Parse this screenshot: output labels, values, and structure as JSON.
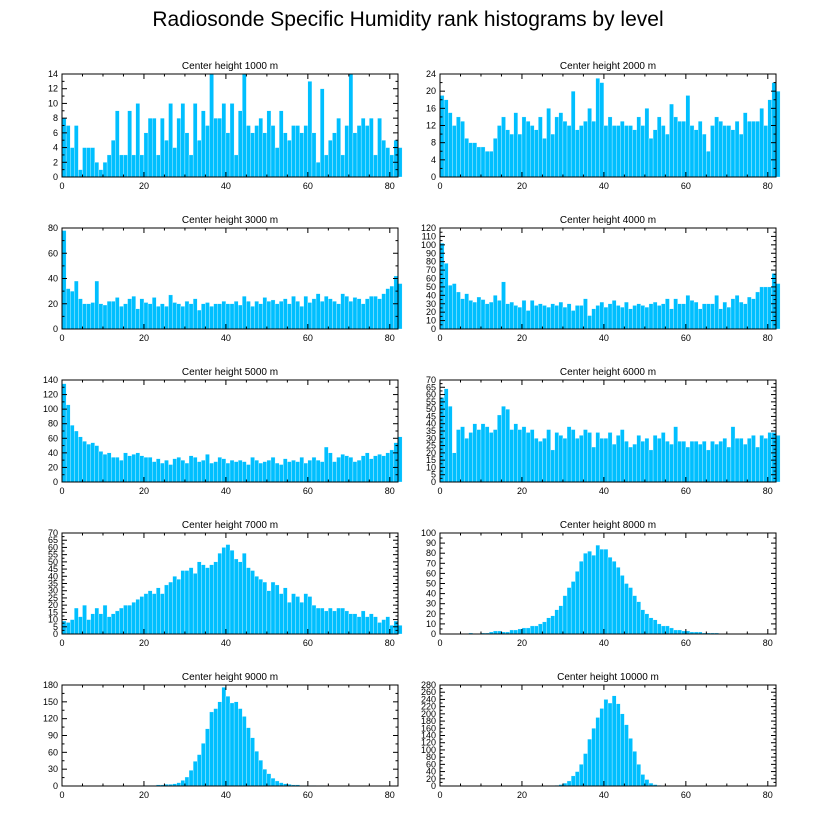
{
  "title": "Radiosonde Specific Humidity rank histograms by level",
  "bar_color": "#00bfff",
  "chart_data": [
    {
      "type": "bar",
      "title": "Center height 1000 m",
      "xlabel": "",
      "ylabel": "",
      "xlim": [
        0,
        82
      ],
      "xticks": [
        0,
        20,
        40,
        60,
        80
      ],
      "ylim": [
        0,
        14
      ],
      "yticks": [
        0,
        2,
        4,
        6,
        8,
        10,
        12,
        14
      ],
      "values": [
        8,
        7,
        4,
        7,
        1,
        4,
        4,
        4,
        2,
        1,
        2,
        3,
        5,
        9,
        3,
        3,
        9,
        3,
        10,
        3,
        6,
        8,
        8,
        3,
        8,
        5,
        10,
        4,
        8,
        10,
        6,
        3,
        10,
        5,
        9,
        7,
        14,
        8,
        8,
        10,
        6,
        10,
        3,
        9,
        14,
        7,
        6,
        7,
        8,
        6,
        9,
        7,
        4,
        9,
        6,
        5,
        7,
        7,
        6,
        7,
        13,
        6,
        2,
        12,
        3,
        5,
        6,
        8,
        3,
        7,
        14,
        6,
        7,
        8,
        7,
        8,
        3,
        8,
        5,
        4,
        3,
        5,
        4
      ]
    },
    {
      "type": "bar",
      "title": "Center height 2000 m",
      "xlabel": "",
      "ylabel": "",
      "xlim": [
        0,
        82
      ],
      "xticks": [
        0,
        20,
        40,
        60,
        80
      ],
      "ylim": [
        0,
        24
      ],
      "yticks": [
        0,
        4,
        8,
        12,
        16,
        20,
        24
      ],
      "values": [
        19,
        18,
        15,
        12,
        14,
        13,
        9,
        8,
        8,
        7,
        7,
        6,
        6,
        9,
        12,
        14,
        11,
        10,
        15,
        10,
        14,
        13,
        12,
        11,
        14,
        9,
        16,
        10,
        14,
        15,
        13,
        12,
        20,
        11,
        12,
        13,
        16,
        13,
        23,
        22,
        12,
        14,
        12,
        12,
        13,
        12,
        12,
        11,
        14,
        12,
        16,
        9,
        11,
        14,
        12,
        10,
        17,
        14,
        13,
        13,
        19,
        12,
        11,
        13,
        10,
        6,
        12,
        14,
        13,
        12,
        12,
        11,
        13,
        10,
        15,
        13,
        13,
        13,
        16,
        12,
        18,
        22,
        20
      ]
    },
    {
      "type": "bar",
      "title": "Center height 3000 m",
      "xlabel": "",
      "ylabel": "",
      "xlim": [
        0,
        82
      ],
      "xticks": [
        0,
        20,
        40,
        60,
        80
      ],
      "ylim": [
        0,
        80
      ],
      "yticks": [
        0,
        20,
        40,
        60,
        80
      ],
      "values": [
        78,
        32,
        30,
        38,
        24,
        20,
        20,
        21,
        38,
        20,
        19,
        22,
        22,
        25,
        18,
        20,
        24,
        26,
        16,
        24,
        21,
        20,
        25,
        18,
        20,
        18,
        27,
        21,
        20,
        18,
        22,
        20,
        24,
        15,
        20,
        21,
        18,
        20,
        20,
        22,
        20,
        20,
        22,
        19,
        26,
        22,
        18,
        22,
        20,
        25,
        22,
        23,
        20,
        22,
        24,
        20,
        26,
        22,
        18,
        26,
        21,
        24,
        28,
        22,
        26,
        24,
        22,
        20,
        28,
        26,
        22,
        25,
        24,
        20,
        24,
        26,
        26,
        24,
        28,
        32,
        34,
        42,
        36
      ]
    },
    {
      "type": "bar",
      "title": "Center height 4000 m",
      "xlabel": "",
      "ylabel": "",
      "xlim": [
        0,
        82
      ],
      "xticks": [
        0,
        20,
        40,
        60,
        80
      ],
      "ylim": [
        0,
        120
      ],
      "yticks": [
        0,
        10,
        20,
        30,
        40,
        50,
        60,
        70,
        80,
        90,
        100,
        110,
        120
      ],
      "values": [
        102,
        78,
        52,
        54,
        44,
        36,
        42,
        34,
        32,
        38,
        35,
        30,
        32,
        40,
        34,
        56,
        30,
        32,
        28,
        26,
        34,
        22,
        34,
        28,
        30,
        28,
        26,
        30,
        28,
        32,
        26,
        30,
        22,
        28,
        28,
        36,
        16,
        24,
        28,
        32,
        26,
        30,
        34,
        28,
        26,
        32,
        24,
        28,
        30,
        28,
        26,
        30,
        32,
        28,
        30,
        36,
        24,
        36,
        30,
        30,
        40,
        34,
        32,
        24,
        30,
        30,
        30,
        40,
        24,
        32,
        26,
        36,
        40,
        32,
        30,
        38,
        36,
        44,
        50,
        50,
        50,
        66,
        54
      ]
    },
    {
      "type": "bar",
      "title": "Center height 5000 m",
      "xlabel": "",
      "ylabel": "",
      "xlim": [
        0,
        82
      ],
      "xticks": [
        0,
        20,
        40,
        60,
        80
      ],
      "ylim": [
        0,
        140
      ],
      "yticks": [
        0,
        20,
        40,
        60,
        80,
        100,
        120,
        140
      ],
      "values": [
        135,
        106,
        78,
        70,
        62,
        56,
        52,
        54,
        50,
        42,
        38,
        40,
        34,
        34,
        30,
        40,
        36,
        38,
        40,
        36,
        34,
        34,
        28,
        32,
        26,
        30,
        24,
        32,
        34,
        30,
        26,
        36,
        34,
        28,
        30,
        38,
        26,
        28,
        34,
        32,
        26,
        30,
        28,
        30,
        28,
        24,
        34,
        30,
        26,
        28,
        30,
        34,
        26,
        24,
        32,
        28,
        30,
        28,
        34,
        26,
        30,
        34,
        30,
        28,
        48,
        40,
        28,
        34,
        38,
        36,
        34,
        28,
        30,
        36,
        40,
        32,
        36,
        38,
        36,
        40,
        44,
        54,
        62
      ]
    },
    {
      "type": "bar",
      "title": "Center height 6000 m",
      "xlabel": "",
      "ylabel": "",
      "xlim": [
        0,
        82
      ],
      "xticks": [
        0,
        20,
        40,
        60,
        80
      ],
      "ylim": [
        0,
        70
      ],
      "yticks": [
        0,
        5,
        10,
        15,
        20,
        25,
        30,
        35,
        40,
        45,
        50,
        55,
        60,
        65,
        70
      ],
      "values": [
        58,
        64,
        52,
        20,
        36,
        38,
        30,
        34,
        40,
        36,
        40,
        38,
        34,
        36,
        46,
        52,
        50,
        36,
        40,
        36,
        38,
        34,
        36,
        30,
        28,
        30,
        36,
        22,
        34,
        32,
        30,
        38,
        36,
        30,
        32,
        36,
        34,
        24,
        34,
        30,
        30,
        34,
        26,
        32,
        36,
        28,
        24,
        26,
        32,
        28,
        30,
        22,
        32,
        30,
        34,
        28,
        26,
        38,
        28,
        28,
        24,
        28,
        28,
        26,
        28,
        22,
        28,
        26,
        28,
        30,
        24,
        38,
        30,
        30,
        26,
        30,
        32,
        24,
        32,
        30,
        34,
        34,
        32
      ]
    },
    {
      "type": "bar",
      "title": "Center height 7000 m",
      "xlabel": "",
      "ylabel": "",
      "xlim": [
        0,
        82
      ],
      "xticks": [
        0,
        20,
        40,
        60,
        80
      ],
      "ylim": [
        0,
        70
      ],
      "yticks": [
        0,
        5,
        10,
        15,
        20,
        25,
        30,
        35,
        40,
        45,
        50,
        55,
        60,
        65,
        70
      ],
      "values": [
        9,
        8,
        10,
        18,
        12,
        20,
        10,
        14,
        18,
        14,
        20,
        12,
        14,
        16,
        18,
        20,
        20,
        22,
        24,
        26,
        28,
        30,
        28,
        32,
        28,
        34,
        36,
        40,
        38,
        44,
        44,
        46,
        42,
        50,
        48,
        46,
        48,
        50,
        56,
        60,
        62,
        58,
        52,
        50,
        56,
        46,
        44,
        40,
        38,
        36,
        30,
        36,
        34,
        28,
        32,
        22,
        28,
        26,
        22,
        28,
        26,
        20,
        18,
        18,
        16,
        18,
        16,
        18,
        18,
        16,
        14,
        14,
        12,
        16,
        12,
        14,
        12,
        8,
        10,
        12,
        6,
        9,
        6
      ]
    },
    {
      "type": "bar",
      "title": "Center height 8000 m",
      "xlabel": "",
      "ylabel": "",
      "xlim": [
        0,
        82
      ],
      "xticks": [
        0,
        20,
        40,
        60,
        80
      ],
      "ylim": [
        0,
        100
      ],
      "yticks": [
        0,
        10,
        20,
        30,
        40,
        50,
        60,
        70,
        80,
        90,
        100
      ],
      "values": [
        0,
        0,
        0,
        0,
        0,
        0,
        0,
        1,
        0,
        0,
        1,
        1,
        2,
        3,
        3,
        2,
        2,
        4,
        4,
        5,
        6,
        6,
        8,
        8,
        10,
        12,
        16,
        18,
        24,
        28,
        38,
        46,
        52,
        62,
        72,
        80,
        82,
        78,
        88,
        84,
        84,
        76,
        72,
        66,
        58,
        50,
        46,
        38,
        32,
        24,
        20,
        16,
        14,
        10,
        8,
        8,
        6,
        4,
        4,
        3,
        3,
        2,
        2,
        2,
        1,
        1,
        1,
        1,
        0,
        0,
        0,
        0,
        0
      ]
    },
    {
      "type": "bar",
      "title": "Center height 9000 m",
      "xlabel": "",
      "ylabel": "",
      "xlim": [
        0,
        82
      ],
      "xticks": [
        0,
        20,
        40,
        60,
        80
      ],
      "ylim": [
        0,
        180
      ],
      "yticks": [
        0,
        30,
        60,
        90,
        120,
        150,
        180
      ],
      "values": [
        0,
        0,
        0,
        0,
        0,
        0,
        0,
        0,
        0,
        0,
        0,
        0,
        0,
        0,
        0,
        0,
        0,
        0,
        0,
        0,
        1,
        1,
        1,
        2,
        2,
        3,
        3,
        4,
        6,
        10,
        16,
        28,
        44,
        56,
        76,
        102,
        132,
        138,
        150,
        176,
        160,
        148,
        150,
        138,
        124,
        104,
        86,
        62,
        46,
        30,
        22,
        14,
        9,
        6,
        4,
        3,
        2,
        2,
        1,
        1,
        1,
        1,
        0,
        1,
        0,
        0,
        0,
        0,
        0,
        0,
        0,
        0,
        0,
        0,
        0,
        0,
        0,
        0,
        0,
        0,
        0,
        0,
        0
      ]
    },
    {
      "type": "bar",
      "title": "Center height 10000 m",
      "xlabel": "",
      "ylabel": "",
      "xlim": [
        0,
        82
      ],
      "xticks": [
        0,
        20,
        40,
        60,
        80
      ],
      "ylim": [
        0,
        280
      ],
      "yticks": [
        0,
        20,
        40,
        60,
        80,
        100,
        120,
        140,
        160,
        180,
        200,
        220,
        240,
        260,
        280
      ],
      "values": [
        0,
        0,
        0,
        0,
        0,
        0,
        0,
        0,
        0,
        0,
        0,
        0,
        0,
        0,
        0,
        0,
        0,
        0,
        0,
        0,
        0,
        0,
        0,
        0,
        0,
        0,
        0,
        1,
        2,
        4,
        8,
        14,
        28,
        40,
        60,
        90,
        130,
        160,
        190,
        215,
        240,
        230,
        250,
        228,
        200,
        170,
        132,
        96,
        60,
        32,
        18,
        8,
        4,
        2,
        1,
        1,
        1,
        0,
        0,
        0,
        0,
        0,
        0,
        0,
        0,
        0,
        0,
        0,
        0,
        0,
        0,
        0,
        0,
        0,
        0,
        0,
        0,
        0,
        0,
        0,
        0,
        0,
        0
      ]
    }
  ]
}
